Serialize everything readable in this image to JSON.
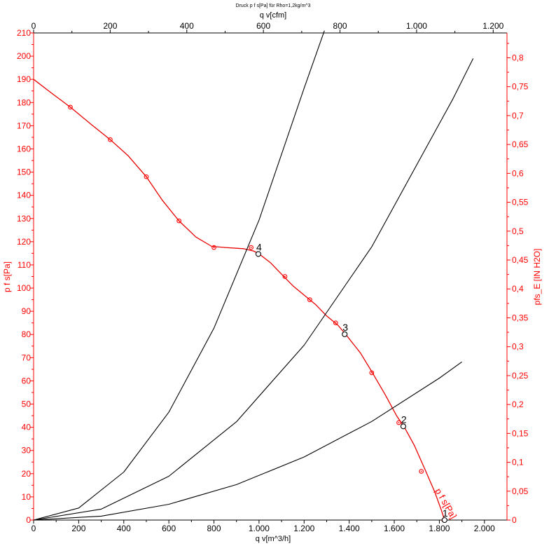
{
  "chart_data": {
    "type": "line",
    "title": "Druck p f s[Pa] für Rho=1,2kg/m^3",
    "xlabel": "q v[m^3/h]",
    "x2label": "q v[cfm]",
    "ylabel": "p f s[Pa]",
    "y2label": "pfs_E [IN H2O]",
    "xlim": [
      0,
      2100
    ],
    "ylim": [
      0,
      210
    ],
    "x2lim": [
      0,
      1236
    ],
    "y2lim": [
      0,
      0.843
    ],
    "grid": false,
    "colors": {
      "primary_axis": "#ff0000",
      "fan_curve": "#e80000",
      "system_curves": "#000000",
      "secondary_axis": "#000000"
    },
    "x_ticks": [
      0,
      200,
      400,
      600,
      800,
      1000,
      1200,
      1400,
      1600,
      1800,
      2000
    ],
    "x_tick_labels": [
      "0",
      "200",
      "400",
      "600",
      "800",
      "1.000",
      "1.200",
      "1.400",
      "1.600",
      "1.800",
      "2.000"
    ],
    "x2_ticks": [
      0,
      200,
      400,
      600,
      800,
      1000,
      1200
    ],
    "x2_tick_labels": [
      "0",
      "200",
      "400",
      "600",
      "800",
      "1.000",
      "1.200"
    ],
    "y_ticks": [
      0,
      10,
      20,
      30,
      40,
      50,
      60,
      70,
      80,
      90,
      100,
      110,
      120,
      130,
      140,
      150,
      160,
      170,
      180,
      190,
      200,
      210
    ],
    "y_tick_labels": [
      "0",
      "10",
      "20",
      "30",
      "40",
      "50",
      "60",
      "70",
      "80",
      "90",
      "100",
      "110",
      "120",
      "130",
      "140",
      "150",
      "160",
      "170",
      "180",
      "190",
      "200",
      "210"
    ],
    "y2_ticks": [
      0,
      0.05,
      0.1,
      0.15,
      0.2,
      0.25,
      0.3,
      0.35,
      0.4,
      0.45,
      0.5,
      0.55,
      0.6,
      0.65,
      0.7,
      0.75,
      0.8
    ],
    "y2_tick_labels": [
      "0",
      "0,05",
      "0,1",
      "0,15",
      "0,2",
      "0,25",
      "0,3",
      "0,35",
      "0,4",
      "0,45",
      "0,5",
      "0,55",
      "0,6",
      "0,65",
      "0,7",
      "0,75",
      "0,8"
    ],
    "series": [
      {
        "name": "p f s[Pa]",
        "curve": [
          [
            0,
            190
          ],
          [
            80,
            184
          ],
          [
            163,
            178
          ],
          [
            250,
            171
          ],
          [
            340,
            164
          ],
          [
            420,
            157
          ],
          [
            500,
            148
          ],
          [
            570,
            138
          ],
          [
            645,
            129
          ],
          [
            720,
            122
          ],
          [
            790,
            118
          ],
          [
            850,
            117.5
          ],
          [
            930,
            117
          ],
          [
            975,
            116
          ],
          [
            997,
            115
          ],
          [
            1050,
            111
          ],
          [
            1100,
            106
          ],
          [
            1150,
            101
          ],
          [
            1200,
            97
          ],
          [
            1250,
            93
          ],
          [
            1300,
            88
          ],
          [
            1350,
            84
          ],
          [
            1385,
            80
          ],
          [
            1450,
            72
          ],
          [
            1500,
            64
          ],
          [
            1560,
            54
          ],
          [
            1610,
            45
          ],
          [
            1645,
            40
          ],
          [
            1690,
            32
          ],
          [
            1740,
            21
          ],
          [
            1780,
            12
          ],
          [
            1810,
            4
          ],
          [
            1823,
            0
          ]
        ],
        "markers": [
          [
            163,
            178
          ],
          [
            340,
            164
          ],
          [
            500,
            148
          ],
          [
            645,
            129
          ],
          [
            800,
            117.5
          ],
          [
            965,
            117.5
          ],
          [
            1115,
            105
          ],
          [
            1225,
            95
          ],
          [
            1340,
            85
          ],
          [
            1500,
            63.5
          ],
          [
            1620,
            42
          ],
          [
            1720,
            21
          ],
          [
            1820,
            0
          ]
        ]
      },
      {
        "name": "",
        "curve": [
          [
            0,
            0
          ],
          [
            200,
            5.2
          ],
          [
            400,
            20.7
          ],
          [
            600,
            46.5
          ],
          [
            800,
            82.7
          ],
          [
            1000,
            129.3
          ],
          [
            1200,
            186.2
          ],
          [
            1290,
            211
          ]
        ]
      },
      {
        "name": "",
        "curve": [
          [
            0,
            0
          ],
          [
            300,
            4.7
          ],
          [
            600,
            18.9
          ],
          [
            900,
            42.4
          ],
          [
            1200,
            75.4
          ],
          [
            1500,
            117.8
          ],
          [
            1860,
            181.5
          ],
          [
            1950,
            199
          ]
        ]
      },
      {
        "name": "",
        "curve": [
          [
            0,
            0
          ],
          [
            300,
            1.7
          ],
          [
            600,
            6.8
          ],
          [
            900,
            15.3
          ],
          [
            1200,
            27.2
          ],
          [
            1500,
            42.5
          ],
          [
            1800,
            61.2
          ],
          [
            1900,
            68.2
          ]
        ]
      }
    ],
    "operating_points": [
      {
        "label": "1",
        "x": 1823,
        "y": 0
      },
      {
        "label": "2",
        "x": 1640,
        "y": 40.4
      },
      {
        "label": "3",
        "x": 1380,
        "y": 80.1
      },
      {
        "label": "4",
        "x": 997,
        "y": 114.7
      }
    ],
    "annotations": [
      "p f s[Pa]"
    ]
  }
}
